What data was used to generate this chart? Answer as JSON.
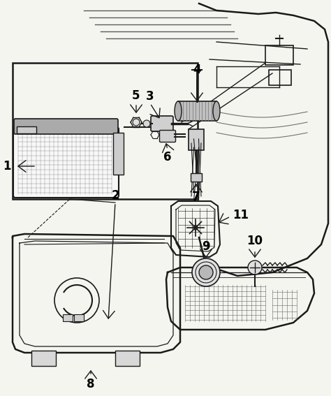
{
  "background_color": "#f5f5f0",
  "line_color": "#1a1a1a",
  "fig_width": 4.74,
  "fig_height": 5.67,
  "dpi": 100
}
